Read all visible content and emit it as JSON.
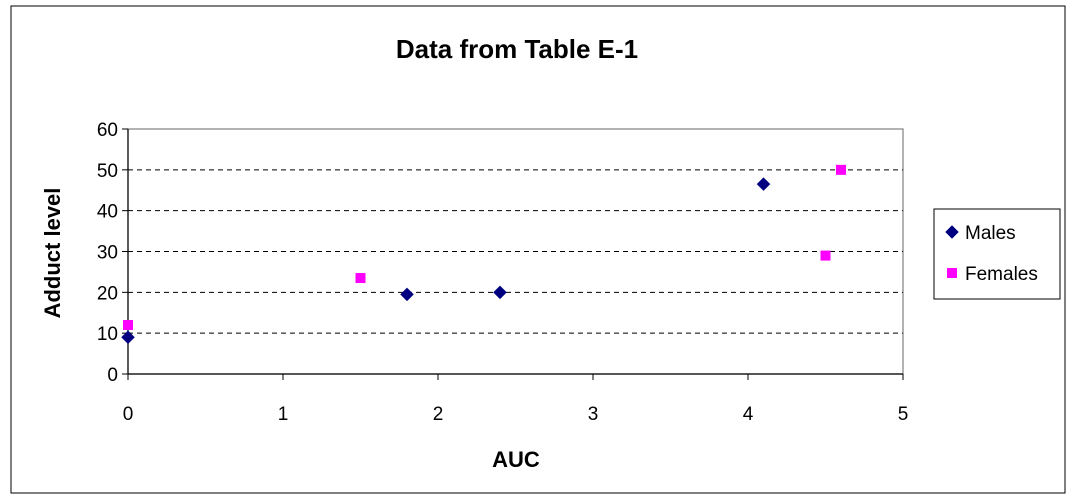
{
  "chart_data": {
    "type": "scatter",
    "title": "Data from Table E-1",
    "xlabel": "AUC",
    "ylabel": "Adduct level",
    "xlim": [
      0,
      5
    ],
    "ylim": [
      0,
      60
    ],
    "x_ticks": [
      0,
      1,
      2,
      3,
      4,
      5
    ],
    "y_ticks": [
      0,
      10,
      20,
      30,
      40,
      50,
      60
    ],
    "grid": "horizontal dashed",
    "legend_position": "right",
    "series": [
      {
        "name": "Males",
        "marker": "diamond",
        "color": "#000080",
        "points": [
          {
            "x": 0,
            "y": 9
          },
          {
            "x": 1.8,
            "y": 19.5
          },
          {
            "x": 2.4,
            "y": 20
          },
          {
            "x": 4.1,
            "y": 46.5
          }
        ]
      },
      {
        "name": "Females",
        "marker": "square",
        "color": "#FF00FF",
        "points": [
          {
            "x": 0,
            "y": 12
          },
          {
            "x": 1.5,
            "y": 23.5
          },
          {
            "x": 4.5,
            "y": 29
          },
          {
            "x": 4.6,
            "y": 50
          }
        ]
      }
    ]
  }
}
